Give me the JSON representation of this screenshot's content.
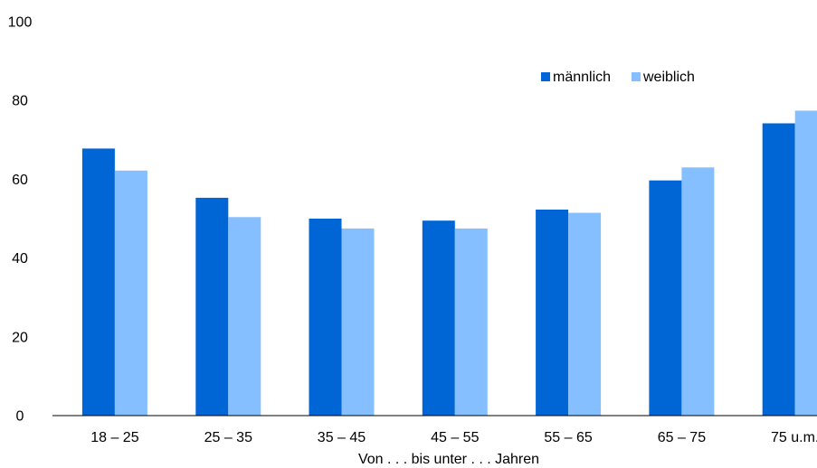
{
  "chart_data": {
    "type": "bar",
    "categories": [
      "18 – 25",
      "25 – 35",
      "35 – 45",
      "45 – 55",
      "55 – 65",
      "65 – 75",
      "75 u.m."
    ],
    "series": [
      {
        "name": "männlich",
        "color": "#0066d6",
        "values": [
          67.8,
          55.3,
          50.0,
          49.5,
          52.3,
          59.7,
          74.2
        ]
      },
      {
        "name": "weiblich",
        "color": "#85bfff",
        "values": [
          62.2,
          50.4,
          47.5,
          47.5,
          51.5,
          63.0,
          77.4
        ]
      }
    ],
    "y_ticks": [
      "0",
      "20",
      "40",
      "60",
      "80",
      "100"
    ],
    "ylim": [
      0,
      100
    ],
    "xlabel": "Von . . . bis unter . . . Jahren",
    "ylabel": "",
    "title": "",
    "grid": false,
    "legend_position": "top-right"
  }
}
